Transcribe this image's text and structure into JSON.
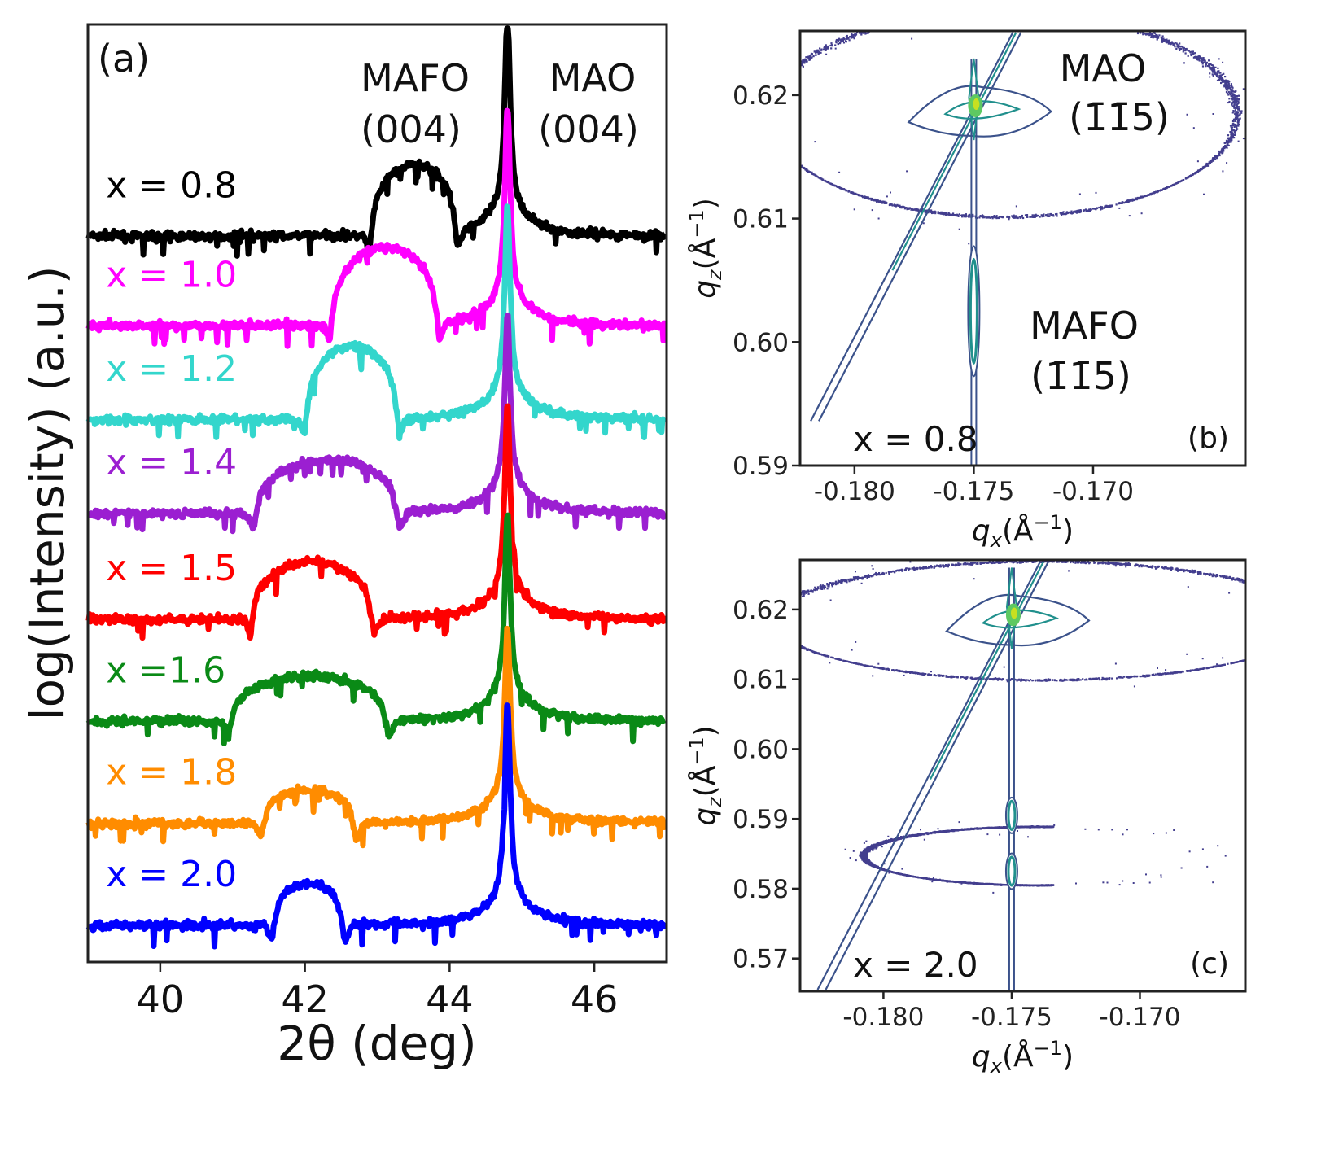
{
  "chart_data": [
    {
      "panel": "(a)",
      "type": "line",
      "xlabel": "2θ (deg)",
      "ylabel": "log(Intensity) (a.u.)",
      "xlim": [
        39,
        47
      ],
      "ylim": [
        0,
        11.5
      ],
      "xticks": [
        40,
        42,
        44,
        46
      ],
      "annotations": {
        "mafo": [
          "MAFO",
          "(004)"
        ],
        "mao": [
          "MAO",
          "(004)"
        ]
      },
      "substrate_peak_deg": 44.8,
      "series": [
        {
          "label": "x = 0.8",
          "color": "#000000",
          "offset": 8.9,
          "film_peak_deg": 43.5,
          "film_half_width": 0.6,
          "film_height": 0.85,
          "substrate_height": 2.4
        },
        {
          "label": "x = 1.0",
          "color": "#ff00ff",
          "offset": 7.8,
          "film_peak_deg": 43.1,
          "film_half_width": 0.75,
          "film_height": 0.95,
          "substrate_height": 2.35
        },
        {
          "label": "x = 1.2",
          "color": "#33d6cc",
          "offset": 6.65,
          "film_peak_deg": 42.65,
          "film_half_width": 0.65,
          "film_height": 0.9,
          "substrate_height": 2.3
        },
        {
          "label": "x = 1.4",
          "color": "#9b1fd1",
          "offset": 5.5,
          "film_peak_deg": 42.3,
          "film_half_width": 1.0,
          "film_height": 0.65,
          "substrate_height": 2.1
        },
        {
          "label": "x = 1.5",
          "color": "#ff0000",
          "offset": 4.2,
          "film_peak_deg": 42.1,
          "film_half_width": 0.85,
          "film_height": 0.7,
          "substrate_height": 2.3
        },
        {
          "label": "x =1.6",
          "color": "#0a8a16",
          "offset": 2.95,
          "film_peak_deg": 42.05,
          "film_half_width": 1.1,
          "film_height": 0.55,
          "substrate_height": 2.2
        },
        {
          "label": "x = 1.8",
          "color": "#ff8c00",
          "offset": 1.7,
          "film_peak_deg": 42.05,
          "film_half_width": 0.65,
          "film_height": 0.4,
          "substrate_height": 2.05
        },
        {
          "label": "x = 2.0",
          "color": "#0000ff",
          "offset": 0.45,
          "film_peak_deg": 42.05,
          "film_half_width": 0.5,
          "film_height": 0.5,
          "substrate_height": 2.4
        }
      ]
    },
    {
      "panel": "(b)",
      "type": "scatter",
      "sample_label": "x = 0.8",
      "xlabel": {
        "q": "q",
        "sub": "x",
        "unit": "(Å",
        "sup": "−1",
        "close": ")"
      },
      "ylabel": {
        "q": "q",
        "sub": "z",
        "unit": "(Å",
        "sup": "−1",
        "close": ")"
      },
      "xlim": [
        -0.18228,
        -0.16362
      ],
      "ylim": [
        0.59,
        0.6252
      ],
      "xticks": [
        "-0.180",
        "-0.175",
        "-0.170"
      ],
      "yticks": [
        "0.59",
        "0.60",
        "0.61",
        "0.62"
      ],
      "annotations": {
        "mao": [
          "MAO",
          "(1̄1̄5)"
        ],
        "mafo": [
          "MAFO",
          "(1̄1̄5)"
        ]
      },
      "substrate_peak": [
        -0.175,
        0.619
      ],
      "film_peak": [
        -0.175,
        0.6025
      ],
      "powder_rings": [
        {
          "center": [
            -0.1738,
            0.6185
          ],
          "radii": [
            0.0098,
            0.0083
          ],
          "from_deg": 0,
          "to_deg": 360
        }
      ],
      "colors": {
        "dots": "#433e8e",
        "contour1": "#3b528b",
        "contour2": "#21908d",
        "contour3": "#5ec962",
        "peak": "#c8e020"
      }
    },
    {
      "panel": "(c)",
      "type": "scatter",
      "sample_label": "x = 2.0",
      "xlabel": {
        "q": "q",
        "sub": "x",
        "unit": "(Å",
        "sup": "−1",
        "close": ")"
      },
      "ylabel": {
        "q": "q",
        "sub": "z",
        "unit": "(Å",
        "sup": "−1",
        "close": ")"
      },
      "xlim": [
        -0.18325,
        -0.16589
      ],
      "ylim": [
        0.5653,
        0.6271
      ],
      "xticks": [
        "-0.180",
        "-0.175",
        "-0.170"
      ],
      "yticks": [
        "0.57",
        "0.58",
        "0.59",
        "0.60",
        "0.61",
        "0.62"
      ],
      "substrate_peak": [
        -0.175,
        0.619
      ],
      "film_peaks": [
        [
          -0.175,
          0.5905
        ],
        [
          -0.175,
          0.5825
        ]
      ],
      "powder_rings": [
        {
          "center": [
            -0.1738,
            0.6185
          ],
          "radii": [
            0.0105,
            0.0085
          ],
          "from_deg": 0,
          "to_deg": 360
        },
        {
          "center": [
            -0.174,
            0.5848
          ],
          "radii": [
            0.0068,
            0.0042
          ],
          "from_deg": 85,
          "to_deg": 275
        }
      ],
      "colors": {
        "dots": "#433e8e",
        "contour1": "#3b528b",
        "contour2": "#21908d",
        "contour3": "#5ec962",
        "peak": "#c8e020"
      }
    }
  ]
}
